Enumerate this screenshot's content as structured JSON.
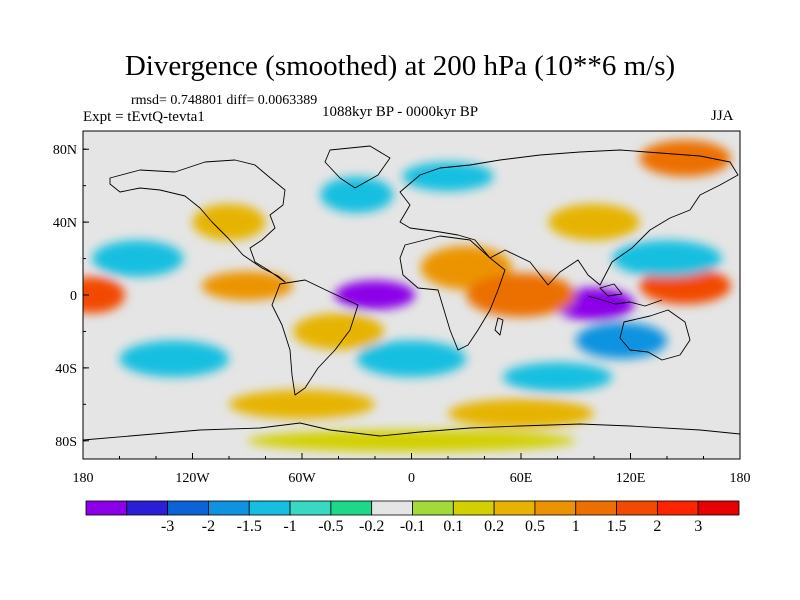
{
  "title": "Divergence (smoothed) at 200 hPa (10**6 m/s)",
  "stats": "rmsd= 0.748801 diff= 0.0063389",
  "experiment": "Expt = tEvtQ-tevta1",
  "period": "1088kyr BP - 0000kyr BP",
  "season": "JJA",
  "axes": {
    "x_ticks": [
      "180",
      "120W",
      "60W",
      "0",
      "60E",
      "120E",
      "180"
    ],
    "y_ticks": [
      "80N",
      "40N",
      "0",
      "40S",
      "80S"
    ]
  },
  "colorbar": {
    "colors": [
      "#8b00e8",
      "#2a1fd6",
      "#0b63d6",
      "#0f93e0",
      "#16bfe0",
      "#37d9c2",
      "#1cd98a",
      "#e5e5e5",
      "#a4d93a",
      "#d2d000",
      "#e6b400",
      "#ec9400",
      "#ec7000",
      "#f24a00",
      "#ff2400",
      "#e80000"
    ],
    "labels": [
      "-3",
      "-2",
      "-1.5",
      "-1",
      "-0.5",
      "-0.2",
      "-0.1",
      "0.1",
      "0.2",
      "0.5",
      "1",
      "1.5",
      "2",
      "3"
    ]
  },
  "field": {
    "units": "10**6 m/s",
    "features": [
      {
        "lon": -20,
        "lat": 0,
        "value": -3.5,
        "rlon": 22,
        "rlat": 8
      },
      {
        "lon": 100,
        "lat": -5,
        "value": -3.5,
        "rlon": 22,
        "rlat": 9
      },
      {
        "lon": -90,
        "lat": 5,
        "value": 1.2,
        "rlon": 25,
        "rlat": 8
      },
      {
        "lon": 30,
        "lat": 15,
        "value": 1.4,
        "rlon": 25,
        "rlat": 12
      },
      {
        "lon": 60,
        "lat": 0,
        "value": 1.5,
        "rlon": 30,
        "rlat": 12
      },
      {
        "lon": 150,
        "lat": 5,
        "value": 2.2,
        "rlon": 25,
        "rlat": 10
      },
      {
        "lon": -175,
        "lat": 0,
        "value": 2.0,
        "rlon": 18,
        "rlat": 10
      },
      {
        "lon": 115,
        "lat": -25,
        "value": -1.2,
        "rlon": 25,
        "rlat": 10
      },
      {
        "lon": 140,
        "lat": 20,
        "value": -1.0,
        "rlon": 30,
        "rlat": 10
      },
      {
        "lon": -150,
        "lat": 20,
        "value": -1.0,
        "rlon": 25,
        "rlat": 10
      },
      {
        "lon": -30,
        "lat": 55,
        "value": -1.0,
        "rlon": 20,
        "rlat": 10
      },
      {
        "lon": 20,
        "lat": 65,
        "value": -1.0,
        "rlon": 25,
        "rlat": 8
      },
      {
        "lon": -130,
        "lat": -35,
        "value": -0.8,
        "rlon": 30,
        "rlat": 10
      },
      {
        "lon": 150,
        "lat": 75,
        "value": 1.5,
        "rlon": 25,
        "rlat": 10
      },
      {
        "lon": -40,
        "lat": -20,
        "value": 0.8,
        "rlon": 25,
        "rlat": 10
      },
      {
        "lon": 0,
        "lat": -35,
        "value": -0.8,
        "rlon": 30,
        "rlat": 10
      },
      {
        "lon": -100,
        "lat": 40,
        "value": 0.8,
        "rlon": 20,
        "rlat": 10
      },
      {
        "lon": 100,
        "lat": 40,
        "value": 0.7,
        "rlon": 25,
        "rlat": 10
      },
      {
        "lon": 80,
        "lat": -45,
        "value": -0.8,
        "rlon": 30,
        "rlat": 8
      },
      {
        "lon": -60,
        "lat": -60,
        "value": 0.5,
        "rlon": 40,
        "rlat": 8
      },
      {
        "lon": 60,
        "lat": -65,
        "value": 0.6,
        "rlon": 40,
        "rlat": 8
      },
      {
        "lon": 0,
        "lat": -80,
        "value": 0.4,
        "rlon": 90,
        "rlat": 6
      }
    ]
  }
}
